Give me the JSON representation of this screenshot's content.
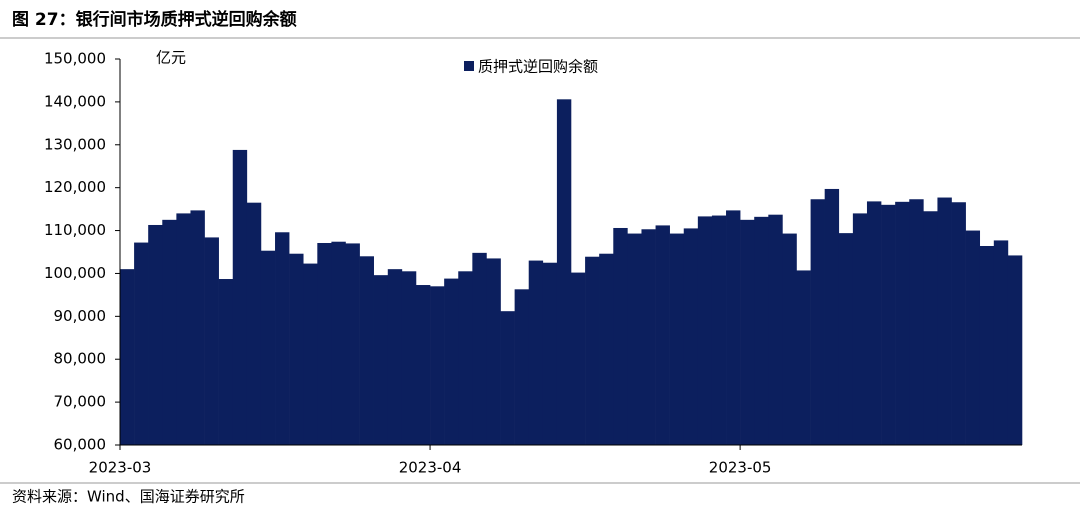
{
  "chart_data": {
    "type": "bar",
    "title": "图 27：银行间市场质押式逆回购余额",
    "y_label": "亿元",
    "source": "资料来源：Wind、国海证券研究所",
    "categories": [
      "2023-03",
      null,
      null,
      null,
      null,
      null,
      null,
      null,
      null,
      null,
      null,
      null,
      null,
      null,
      null,
      null,
      null,
      null,
      null,
      null,
      null,
      null,
      "2023-04",
      null,
      null,
      null,
      null,
      null,
      null,
      null,
      null,
      null,
      null,
      null,
      null,
      null,
      null,
      null,
      null,
      null,
      null,
      null,
      null,
      null,
      "2023-05",
      null,
      null,
      null,
      null,
      null,
      null,
      null,
      null,
      null,
      null,
      null,
      null,
      null,
      null,
      null,
      null,
      null,
      null,
      null
    ],
    "series": [
      {
        "name": "质押式逆回购余额",
        "color": "#0c1f5e",
        "values": [
          101000,
          107200,
          111300,
          112500,
          114000,
          114700,
          108400,
          98700,
          128800,
          116500,
          105300,
          109600,
          104600,
          102300,
          107100,
          107400,
          107000,
          104000,
          99600,
          101000,
          100500,
          97300,
          97000,
          98800,
          100500,
          104800,
          103500,
          91200,
          96300,
          103000,
          102500,
          140600,
          100200,
          103900,
          104600,
          110600,
          109300,
          110300,
          111200,
          109300,
          110500,
          113300,
          113500,
          114700,
          112500,
          113200,
          113700,
          109300,
          100700,
          117300,
          119700,
          109400,
          114000,
          116800,
          116000,
          116700,
          117300,
          114500,
          117700,
          116600,
          110000,
          106400,
          107700,
          104200
        ]
      }
    ],
    "ylim": [
      60000,
      150000
    ],
    "yticks": [
      {
        "value": 60000,
        "label": "60,000"
      },
      {
        "value": 70000,
        "label": "70,000"
      },
      {
        "value": 80000,
        "label": "80,000"
      },
      {
        "value": 90000,
        "label": "90,000"
      },
      {
        "value": 100000,
        "label": "100,000"
      },
      {
        "value": 110000,
        "label": "110,000"
      },
      {
        "value": 120000,
        "label": "120,000"
      },
      {
        "value": 130000,
        "label": "130,000"
      },
      {
        "value": 140000,
        "label": "140,000"
      },
      {
        "value": 150000,
        "label": "150,000"
      }
    ],
    "grid": false
  }
}
